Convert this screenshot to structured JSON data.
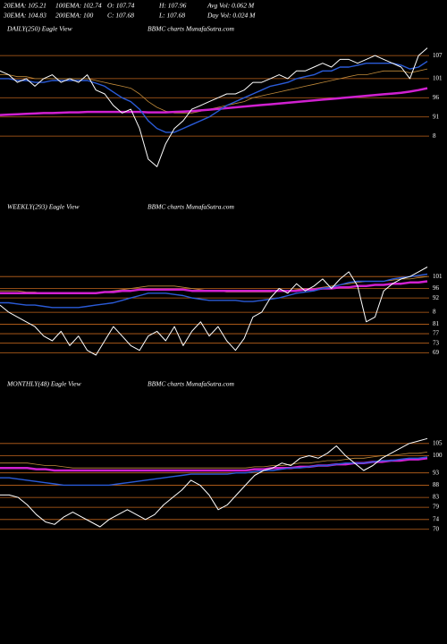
{
  "header": {
    "line1": [
      "20EMA: 105.21",
      "100EMA: 102.74",
      "O: 107.74",
      "H: 107.96",
      "Avg Vol: 0.062  M"
    ],
    "line2": [
      "30EMA: 104.83",
      "200EMA: 100",
      "C: 107.68",
      "L: 107.68",
      "Day Vol: 0.024  M"
    ]
  },
  "chart_data": [
    {
      "type": "line",
      "title": "DAILY(250) Eagle View",
      "subtitle": "BBMC charts MunafaSutra.com",
      "ylim": [
        76,
        111
      ],
      "yticks": [
        107,
        101,
        96,
        91,
        {
          "value": 86,
          "label": "8"
        }
      ],
      "grid": true,
      "grid_color": "#c0651c",
      "series": [
        {
          "color": "#c08a3a",
          "values": [
            102,
            102,
            101.5,
            101.5,
            101,
            101,
            101,
            101,
            101,
            101,
            101,
            100.5,
            100,
            99.5,
            99,
            98.5,
            97,
            95,
            93.5,
            92.5,
            92,
            92,
            92,
            92.5,
            93,
            93.5,
            94,
            94.5,
            95,
            96,
            96.5,
            97,
            97.5,
            98,
            98.5,
            99,
            99.5,
            100,
            100.5,
            101,
            101.5,
            102,
            102,
            102.5,
            103,
            103,
            103,
            102.5,
            103,
            103.5
          ]
        },
        {
          "color": "#d020d0",
          "values": [
            91.5,
            91.6,
            91.7,
            91.8,
            91.9,
            92,
            92,
            92.1,
            92.2,
            92.2,
            92.3,
            92.3,
            92.3,
            92.3,
            92.3,
            92.3,
            92.3,
            92.2,
            92.2,
            92.2,
            92.3,
            92.4,
            92.5,
            92.7,
            92.9,
            93.1,
            93.3,
            93.5,
            93.7,
            93.9,
            94.1,
            94.3,
            94.5,
            94.7,
            94.9,
            95.1,
            95.3,
            95.5,
            95.7,
            95.9,
            96.1,
            96.3,
            96.5,
            96.7,
            96.9,
            97.1,
            97.3,
            97.6,
            98,
            98.5
          ]
        },
        {
          "color": "#2a5bd8",
          "values": [
            101,
            101,
            100.5,
            100.5,
            100,
            100,
            100.5,
            100.5,
            100.5,
            100.5,
            100.5,
            99.8,
            99,
            97.5,
            96,
            95,
            93,
            90,
            88,
            87,
            87,
            88,
            89,
            90,
            91,
            92.5,
            94,
            95,
            96,
            97,
            98,
            99,
            99.5,
            100,
            101,
            101.5,
            102,
            103,
            103,
            104,
            104,
            104.5,
            105,
            105,
            105,
            105,
            104.5,
            103.5,
            104,
            105.5
          ]
        },
        {
          "color": "#ffffff",
          "values": [
            103,
            102,
            100,
            101,
            99,
            101,
            102,
            100,
            101,
            100,
            102,
            98,
            97,
            94,
            92,
            93,
            88,
            80,
            78,
            84,
            88,
            90,
            93,
            94,
            95,
            96,
            97,
            97,
            98,
            100,
            100,
            101,
            102,
            101,
            103,
            103,
            104,
            105,
            104,
            106,
            106,
            105,
            106,
            107,
            106,
            105,
            104,
            101,
            107,
            109
          ]
        }
      ]
    },
    {
      "type": "line",
      "title": "WEEKLY(293) Eagle View",
      "subtitle": "BBMC charts MunafaSutra.com",
      "ylim": [
        65,
        127
      ],
      "yticks": [
        101,
        96,
        92,
        {
          "value": 86,
          "label": "8"
        },
        81,
        77,
        73,
        69
      ],
      "grid": true,
      "grid_color": "#c0651c",
      "series": [
        {
          "color": "#c08a3a",
          "values": [
            95,
            95,
            95,
            94.5,
            94.5,
            94,
            94,
            94,
            94,
            94,
            94,
            94,
            94.5,
            95,
            95.5,
            96,
            96.5,
            97,
            97,
            97,
            97,
            96.5,
            96,
            95.5,
            95,
            95,
            94.5,
            94.5,
            94.5,
            94.5,
            94.5,
            94.5,
            95,
            95,
            95.5,
            96,
            96,
            96.5,
            97,
            97.5,
            98,
            98.5,
            99,
            99,
            99,
            99.5,
            100,
            100,
            100.5,
            101
          ]
        },
        {
          "color": "#d020d0",
          "values": [
            94,
            94,
            94,
            94,
            94,
            94,
            94,
            94,
            94,
            94,
            94,
            94,
            94.5,
            94.5,
            95,
            95,
            95.5,
            95.5,
            95.5,
            95.5,
            95.5,
            95.5,
            95,
            95,
            95,
            95,
            95,
            95,
            95,
            95,
            95,
            95,
            95,
            95,
            95,
            95.5,
            95.5,
            96,
            96,
            96.5,
            96.5,
            97,
            97,
            97.5,
            97.5,
            98,
            98,
            98.5,
            98.5,
            99
          ]
        },
        {
          "color": "#2a5bd8",
          "values": [
            90,
            90,
            89.5,
            89,
            89,
            88.5,
            88,
            88,
            88,
            88,
            88.5,
            89,
            89.5,
            90,
            91,
            92,
            93,
            94,
            94,
            94,
            93.5,
            93,
            92,
            91.5,
            91,
            91,
            91,
            91,
            90.5,
            90.5,
            91,
            91.5,
            92,
            93,
            94,
            94.5,
            95,
            96,
            96.5,
            97.5,
            98.5,
            99,
            99,
            99,
            99,
            100,
            100.5,
            101,
            101.5,
            102
          ]
        },
        {
          "color": "#ffffff",
          "values": [
            89,
            86,
            84,
            82,
            80,
            76,
            74,
            78,
            72,
            76,
            70,
            68,
            74,
            80,
            76,
            72,
            70,
            76,
            78,
            74,
            80,
            72,
            78,
            82,
            76,
            80,
            74,
            70,
            75,
            84,
            86,
            92,
            96,
            94,
            98,
            95,
            97,
            100,
            96,
            100,
            103,
            97,
            82,
            84,
            95,
            98,
            100,
            101,
            103,
            105
          ]
        }
      ]
    },
    {
      "type": "line",
      "title": "MONTHLY(48) Eagle View",
      "subtitle": "BBMC charts MunafaSutra.com",
      "ylim": [
        67,
        129
      ],
      "yticks": [
        105,
        100,
        93,
        88,
        83,
        79,
        74,
        70
      ],
      "grid": true,
      "grid_color": "#c0651c",
      "series": [
        {
          "color": "#c08a3a",
          "values": [
            97,
            97,
            97,
            97,
            96.5,
            96,
            96,
            95.5,
            95,
            95,
            95,
            95,
            95,
            95,
            95,
            95,
            95,
            95,
            95,
            95,
            95,
            95,
            95,
            95,
            95,
            95,
            95,
            95,
            95.5,
            95.5,
            96,
            96,
            96.5,
            97,
            97,
            97.5,
            98,
            98,
            98.5,
            99,
            99,
            99.5,
            100,
            100,
            100.5,
            101,
            101,
            101.5
          ]
        },
        {
          "color": "#d020d0",
          "values": [
            95,
            95,
            95,
            95,
            94.5,
            94.5,
            94,
            94,
            94,
            94,
            94,
            94,
            94,
            94,
            94,
            94,
            94,
            94,
            94,
            94,
            94,
            94,
            94,
            94,
            94,
            94,
            94,
            94,
            94.5,
            94.5,
            95,
            95,
            95,
            95.5,
            95.5,
            96,
            96,
            96.5,
            96.5,
            97,
            97,
            97.5,
            97.5,
            98,
            98,
            98.5,
            98.5,
            99
          ]
        },
        {
          "color": "#2a5bd8",
          "values": [
            91,
            91,
            90.5,
            90,
            89.5,
            89,
            88.5,
            88,
            88,
            88,
            88,
            88,
            88,
            88.5,
            89,
            89.5,
            90,
            90.5,
            91,
            91.5,
            92,
            92.5,
            92.5,
            92.5,
            92.5,
            92.5,
            93,
            93,
            93.5,
            94,
            94,
            94.5,
            95,
            95,
            95.5,
            96,
            96,
            96.5,
            97,
            97,
            97,
            97.5,
            98,
            98,
            98.5,
            99,
            99,
            99.5
          ]
        },
        {
          "color": "#ffffff",
          "values": [
            84,
            84,
            83,
            80,
            76,
            73,
            72,
            75,
            77,
            75,
            73,
            71,
            74,
            76,
            78,
            76,
            74,
            76,
            80,
            83,
            86,
            90,
            88,
            84,
            78,
            80,
            84,
            88,
            92,
            94,
            95,
            97,
            96,
            99,
            100,
            99,
            101,
            104,
            100,
            97,
            94,
            96,
            99,
            101,
            103,
            105,
            106,
            107
          ]
        }
      ]
    }
  ]
}
